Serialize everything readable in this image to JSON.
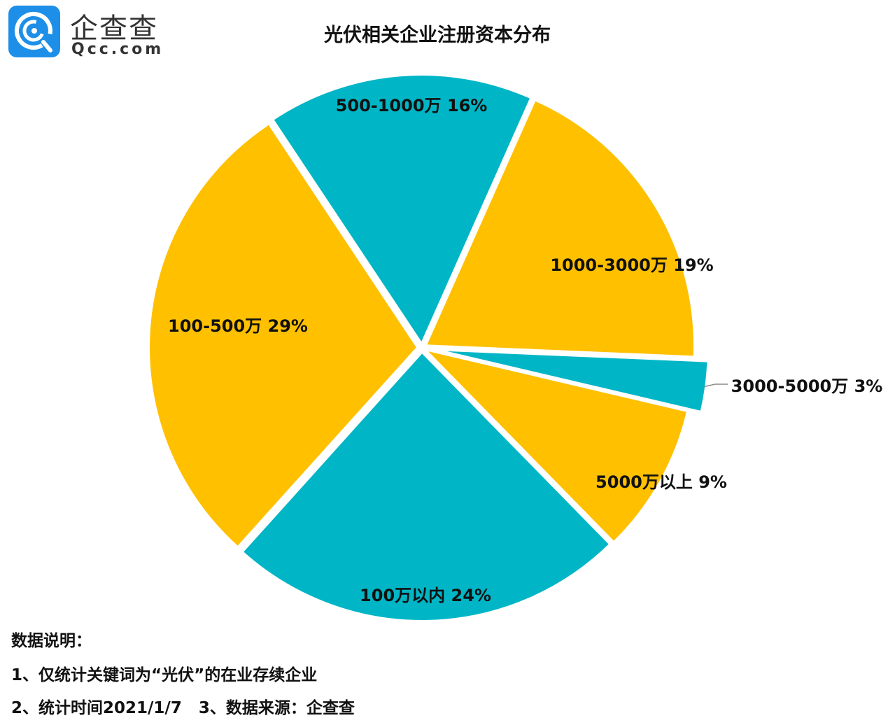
{
  "logo": {
    "text_cn": "企查查",
    "text_en": "Qcc.com",
    "color": "#1E8FE8"
  },
  "chart_data": {
    "type": "pie",
    "title": "光伏相关企业注册资本分布",
    "slices": [
      {
        "label": "500-1000万",
        "value": 16,
        "pct_label": "16%",
        "color": "#00B6C6"
      },
      {
        "label": "1000-3000万",
        "value": 19,
        "pct_label": "19%",
        "color": "#FFC000"
      },
      {
        "label": "3000-5000万",
        "value": 3,
        "pct_label": "3%",
        "color": "#00B6C6",
        "exploded": true
      },
      {
        "label": "5000万以上",
        "value": 9,
        "pct_label": "9%",
        "color": "#FFC000"
      },
      {
        "label": "100万以内",
        "value": 24,
        "pct_label": "24%",
        "color": "#00B6C6"
      },
      {
        "label": "100-500万",
        "value": 29,
        "pct_label": "29%",
        "color": "#FFC000"
      }
    ]
  },
  "notes": {
    "heading": "数据说明：",
    "line1": "1、仅统计关键词为“光伏”的在业存续企业",
    "line2": "2、统计时间2021/1/7   3、数据来源：企查查"
  }
}
